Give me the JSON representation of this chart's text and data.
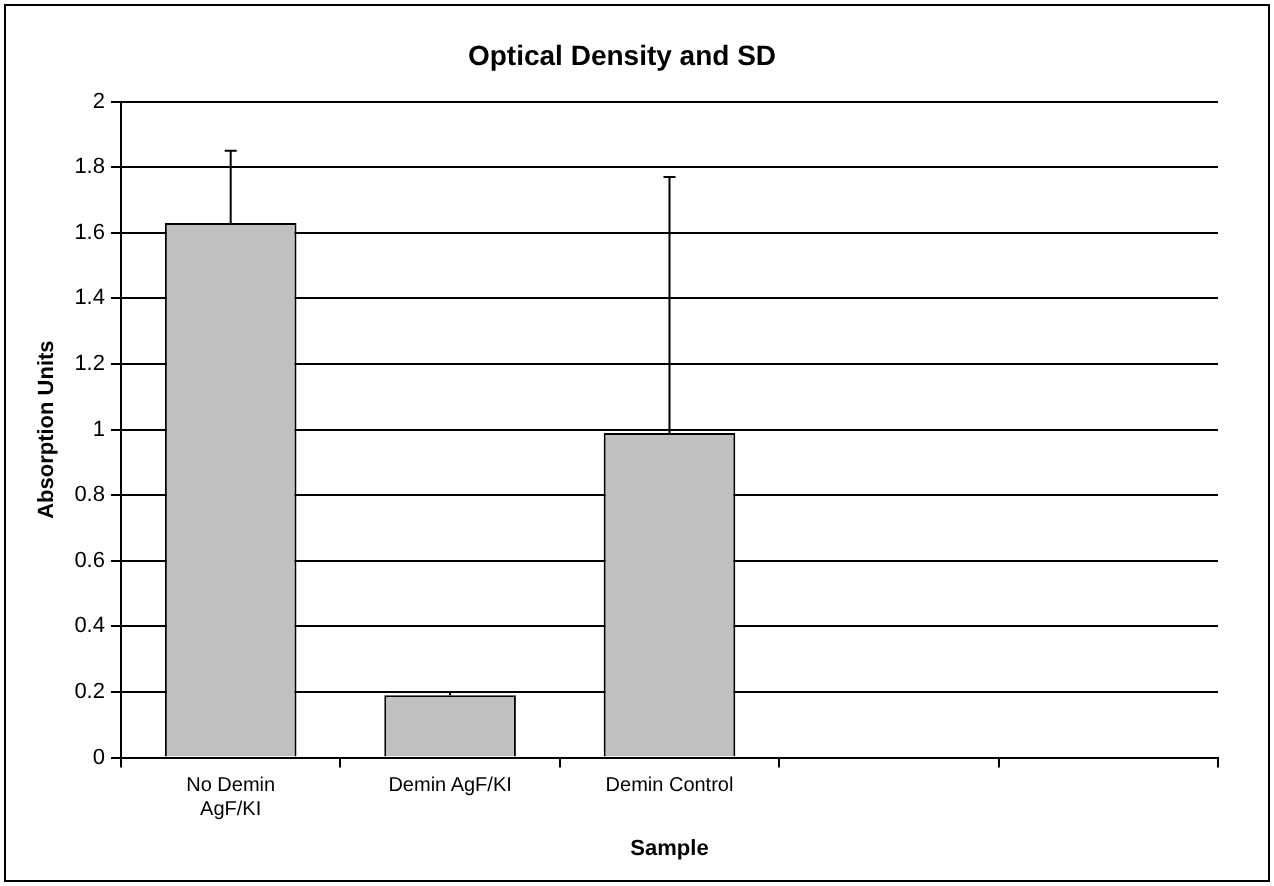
{
  "chart_data": {
    "type": "bar",
    "title": "Optical Density and SD",
    "xlabel": "Sample",
    "ylabel": "Absorption Units",
    "categories": [
      "No Demin AgF/KI",
      "Demin AgF/KI",
      "Demin Control",
      null,
      null
    ],
    "values": [
      1.63,
      0.19,
      0.99,
      null,
      null
    ],
    "errors": [
      [
        1.63,
        1.85
      ],
      [
        0.19,
        0.2
      ],
      [
        0.99,
        1.77
      ],
      null,
      null
    ],
    "color": "#c0c0c0",
    "ylim": [
      0,
      2
    ],
    "yticks": [
      0,
      0.2,
      0.4,
      0.6,
      0.8,
      1,
      1.2,
      1.4,
      1.6,
      1.8,
      2
    ],
    "grid": "y"
  }
}
